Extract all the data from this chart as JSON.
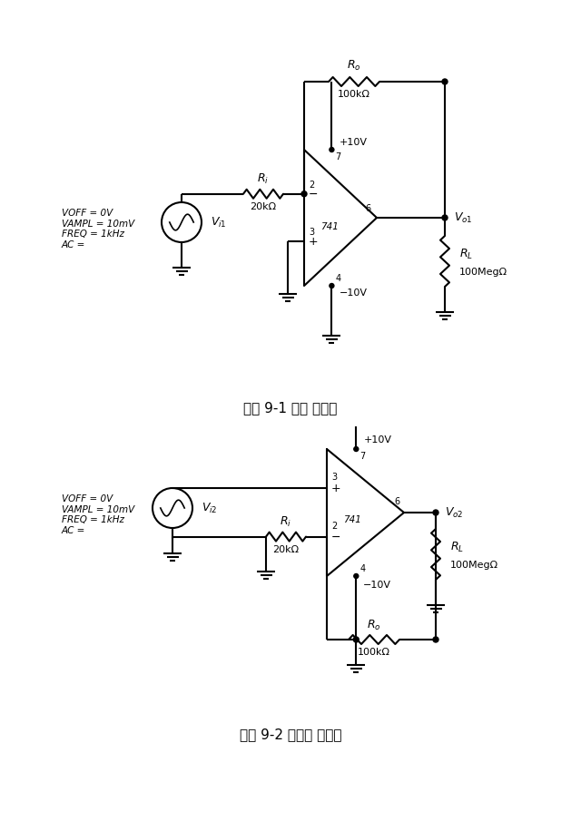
{
  "bg_color": "#ffffff",
  "line_color": "#000000",
  "line_width": 1.5,
  "fig_width": 6.4,
  "fig_height": 9.05,
  "caption1": "그림 9-1 반전 증폭기",
  "caption2": "그림 9-2 비반전 증폭기",
  "caption_fontsize": 11,
  "label_fontsize": 9,
  "small_fontsize": 8,
  "source_text1": "VOFF = 0V\nVAMPL = 10mV\nFREQ = 1kHz\nAC =",
  "source_text2": "VOFF = 0V\nVAMPL = 10mV\nFREQ = 1kHz\nAC =",
  "Vi1_label": "$V_{i1}$",
  "Vi2_label": "$V_{i2}$",
  "Vo1_label": "$V_{o1}$",
  "Vo2_label": "$V_{o2}$",
  "Ri_label1": "$R_i$",
  "Ri_label2": "$R_i$",
  "Ro_label1": "$R_o$",
  "Ro_label2": "$R_o$",
  "RL_label1": "$R_L$",
  "RL_label2": "$R_L$",
  "Ri_val": "20kΩ",
  "Ro_val": "100kΩ",
  "RL_val": "100MegΩ",
  "plus_10V": "+10V",
  "minus_10V": "−10V",
  "node741": "741"
}
